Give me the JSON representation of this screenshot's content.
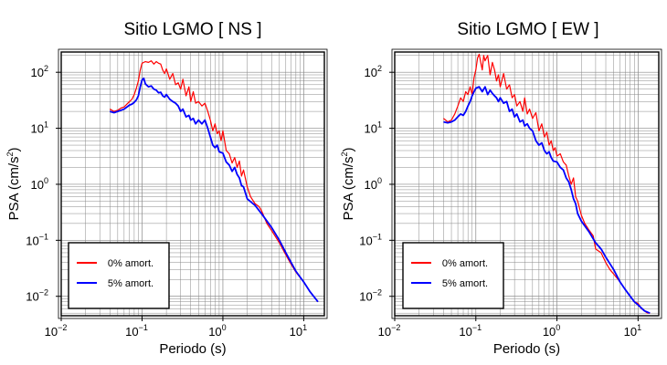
{
  "chart_data": [
    {
      "type": "line",
      "title": "Sitio LGMO [ NS ]",
      "xlabel": "Periodo (s)",
      "ylabel": "PSA (cm/s²)",
      "ylabel_parts": {
        "pre": "PSA (cm/s",
        "sup": "2",
        "post": ")"
      },
      "xscale": "log",
      "yscale": "log",
      "xlim": [
        0.01,
        18
      ],
      "ylim": [
        0.0045,
        230
      ],
      "grid": true,
      "legend_placement": "bottom-left",
      "x_ticks": [
        {
          "base": "10",
          "exp": "−2"
        },
        {
          "base": "10",
          "exp": "−1"
        },
        {
          "base": "10",
          "exp": "0"
        },
        {
          "base": "10",
          "exp": "1"
        }
      ],
      "y_ticks": [
        {
          "base": "10",
          "exp": "−2"
        },
        {
          "base": "10",
          "exp": "−1"
        },
        {
          "base": "10",
          "exp": "0"
        },
        {
          "base": "10",
          "exp": "1"
        },
        {
          "base": "10",
          "exp": "2"
        }
      ],
      "series": [
        {
          "name": "0% amort.",
          "color": "#ff0000",
          "x": [
            0.04,
            0.045,
            0.05,
            0.055,
            0.06,
            0.065,
            0.07,
            0.075,
            0.08,
            0.085,
            0.09,
            0.095,
            0.1,
            0.11,
            0.12,
            0.13,
            0.14,
            0.15,
            0.16,
            0.17,
            0.18,
            0.19,
            0.2,
            0.22,
            0.24,
            0.26,
            0.28,
            0.3,
            0.32,
            0.35,
            0.38,
            0.4,
            0.43,
            0.46,
            0.5,
            0.55,
            0.6,
            0.65,
            0.7,
            0.75,
            0.8,
            0.85,
            0.9,
            0.95,
            1.0,
            1.1,
            1.2,
            1.3,
            1.4,
            1.5,
            1.6,
            1.7,
            1.8,
            2.0,
            2.2,
            2.5,
            2.8,
            3.0,
            3.5,
            4,
            5,
            6,
            7,
            8,
            10,
            12,
            15
          ],
          "values": [
            22,
            20,
            21,
            23,
            24,
            27,
            30,
            33,
            40,
            52,
            70,
            110,
            145,
            155,
            150,
            160,
            140,
            155,
            145,
            140,
            110,
            95,
            115,
            75,
            95,
            60,
            65,
            50,
            75,
            38,
            55,
            30,
            45,
            28,
            30,
            25,
            28,
            20,
            14,
            9,
            12,
            8,
            9,
            6,
            9,
            4,
            3.5,
            2.4,
            3,
            2,
            2.6,
            1.4,
            1.8,
            0.9,
            0.6,
            0.45,
            0.4,
            0.34,
            0.2,
            0.15,
            0.09,
            0.055,
            0.037,
            0.027,
            0.018,
            0.012,
            0.008
          ]
        },
        {
          "name": "5% amort.",
          "color": "#0000ff",
          "x": [
            0.04,
            0.045,
            0.05,
            0.055,
            0.06,
            0.065,
            0.07,
            0.075,
            0.08,
            0.085,
            0.09,
            0.095,
            0.1,
            0.105,
            0.11,
            0.12,
            0.13,
            0.14,
            0.15,
            0.16,
            0.17,
            0.18,
            0.19,
            0.2,
            0.22,
            0.24,
            0.26,
            0.28,
            0.3,
            0.32,
            0.35,
            0.38,
            0.4,
            0.43,
            0.46,
            0.5,
            0.55,
            0.6,
            0.65,
            0.7,
            0.75,
            0.8,
            0.85,
            0.9,
            1.0,
            1.1,
            1.2,
            1.3,
            1.4,
            1.5,
            1.6,
            1.7,
            1.8,
            2.0,
            2.5,
            3.0,
            4,
            5,
            6,
            7,
            8,
            10,
            12,
            15
          ],
          "values": [
            20,
            19,
            20,
            21,
            22,
            24,
            26,
            27,
            29,
            32,
            38,
            55,
            73,
            78,
            62,
            55,
            57,
            50,
            48,
            43,
            44,
            38,
            36,
            40,
            33,
            30,
            28,
            25,
            20,
            22,
            16,
            17,
            14,
            15,
            12,
            14,
            12,
            14,
            10,
            7,
            5,
            4.5,
            5,
            3.8,
            3.6,
            2.5,
            2.2,
            1.7,
            2,
            1.5,
            1.3,
            0.95,
            0.9,
            0.55,
            0.42,
            0.3,
            0.17,
            0.1,
            0.06,
            0.04,
            0.028,
            0.018,
            0.012,
            0.008
          ]
        }
      ]
    },
    {
      "type": "line",
      "title": "Sitio LGMO [ EW ]",
      "xlabel": "Periodo (s)",
      "ylabel": "PSA (cm/s²)",
      "ylabel_parts": {
        "pre": "PSA (cm/s",
        "sup": "2",
        "post": ")"
      },
      "xscale": "log",
      "yscale": "log",
      "xlim": [
        0.01,
        18
      ],
      "ylim": [
        0.0045,
        230
      ],
      "grid": true,
      "legend_placement": "bottom-left",
      "x_ticks": [
        {
          "base": "10",
          "exp": "−2"
        },
        {
          "base": "10",
          "exp": "−1"
        },
        {
          "base": "10",
          "exp": "0"
        },
        {
          "base": "10",
          "exp": "1"
        }
      ],
      "y_ticks": [
        {
          "base": "10",
          "exp": "−2"
        },
        {
          "base": "10",
          "exp": "−1"
        },
        {
          "base": "10",
          "exp": "0"
        },
        {
          "base": "10",
          "exp": "1"
        },
        {
          "base": "10",
          "exp": "2"
        }
      ],
      "series": [
        {
          "name": "0% amort.",
          "color": "#ff0000",
          "x": [
            0.04,
            0.045,
            0.05,
            0.055,
            0.06,
            0.065,
            0.07,
            0.075,
            0.08,
            0.085,
            0.09,
            0.095,
            0.1,
            0.105,
            0.11,
            0.115,
            0.12,
            0.125,
            0.13,
            0.14,
            0.15,
            0.16,
            0.17,
            0.18,
            0.19,
            0.2,
            0.22,
            0.24,
            0.26,
            0.28,
            0.3,
            0.32,
            0.35,
            0.38,
            0.4,
            0.43,
            0.46,
            0.5,
            0.55,
            0.6,
            0.65,
            0.7,
            0.75,
            0.8,
            0.85,
            0.9,
            0.95,
            1.0,
            1.1,
            1.2,
            1.3,
            1.4,
            1.5,
            1.6,
            1.7,
            1.8,
            2.0,
            2.2,
            2.5,
            2.8,
            3.0,
            3.5,
            4,
            4.5,
            5,
            6,
            7,
            8,
            9,
            10,
            11,
            12,
            13,
            14
          ],
          "values": [
            15,
            13,
            14,
            18,
            25,
            35,
            30,
            45,
            40,
            55,
            40,
            80,
            110,
            180,
            210,
            150,
            110,
            200,
            160,
            200,
            90,
            150,
            110,
            70,
            90,
            55,
            95,
            50,
            60,
            35,
            40,
            25,
            30,
            20,
            35,
            18,
            22,
            15,
            19,
            9,
            12,
            7,
            8.5,
            5,
            6,
            4,
            4.5,
            3.2,
            3.5,
            2.5,
            2.2,
            1.4,
            1,
            1.3,
            0.6,
            0.5,
            0.28,
            0.2,
            0.15,
            0.12,
            0.07,
            0.06,
            0.04,
            0.03,
            0.025,
            0.018,
            0.013,
            0.01,
            0.008,
            0.0075,
            0.006,
            0.0055,
            0.005,
            0.005
          ]
        },
        {
          "name": "5% amort.",
          "color": "#0000ff",
          "x": [
            0.04,
            0.045,
            0.05,
            0.055,
            0.06,
            0.065,
            0.07,
            0.075,
            0.08,
            0.085,
            0.09,
            0.095,
            0.1,
            0.11,
            0.12,
            0.13,
            0.14,
            0.15,
            0.16,
            0.17,
            0.18,
            0.19,
            0.2,
            0.22,
            0.24,
            0.26,
            0.28,
            0.3,
            0.32,
            0.35,
            0.38,
            0.4,
            0.43,
            0.46,
            0.5,
            0.55,
            0.6,
            0.65,
            0.7,
            0.75,
            0.8,
            0.85,
            0.9,
            1.0,
            1.1,
            1.2,
            1.3,
            1.4,
            1.5,
            1.6,
            1.7,
            1.8,
            2.0,
            2.5,
            3.0,
            3.5,
            4,
            5,
            6,
            7,
            8,
            9,
            10,
            12,
            14
          ],
          "values": [
            13,
            12.5,
            13,
            14,
            16,
            18,
            17,
            20,
            25,
            30,
            38,
            45,
            52,
            55,
            45,
            55,
            40,
            48,
            42,
            38,
            35,
            30,
            35,
            28,
            30,
            20,
            22,
            16,
            18,
            13,
            14,
            11,
            12,
            10,
            9,
            6,
            5,
            5.5,
            4,
            3.5,
            3.8,
            3,
            2.6,
            2.5,
            2,
            1.8,
            1.3,
            1.1,
            0.8,
            0.55,
            0.45,
            0.3,
            0.22,
            0.14,
            0.09,
            0.07,
            0.05,
            0.03,
            0.018,
            0.013,
            0.01,
            0.008,
            0.007,
            0.0055,
            0.005
          ]
        }
      ]
    }
  ]
}
